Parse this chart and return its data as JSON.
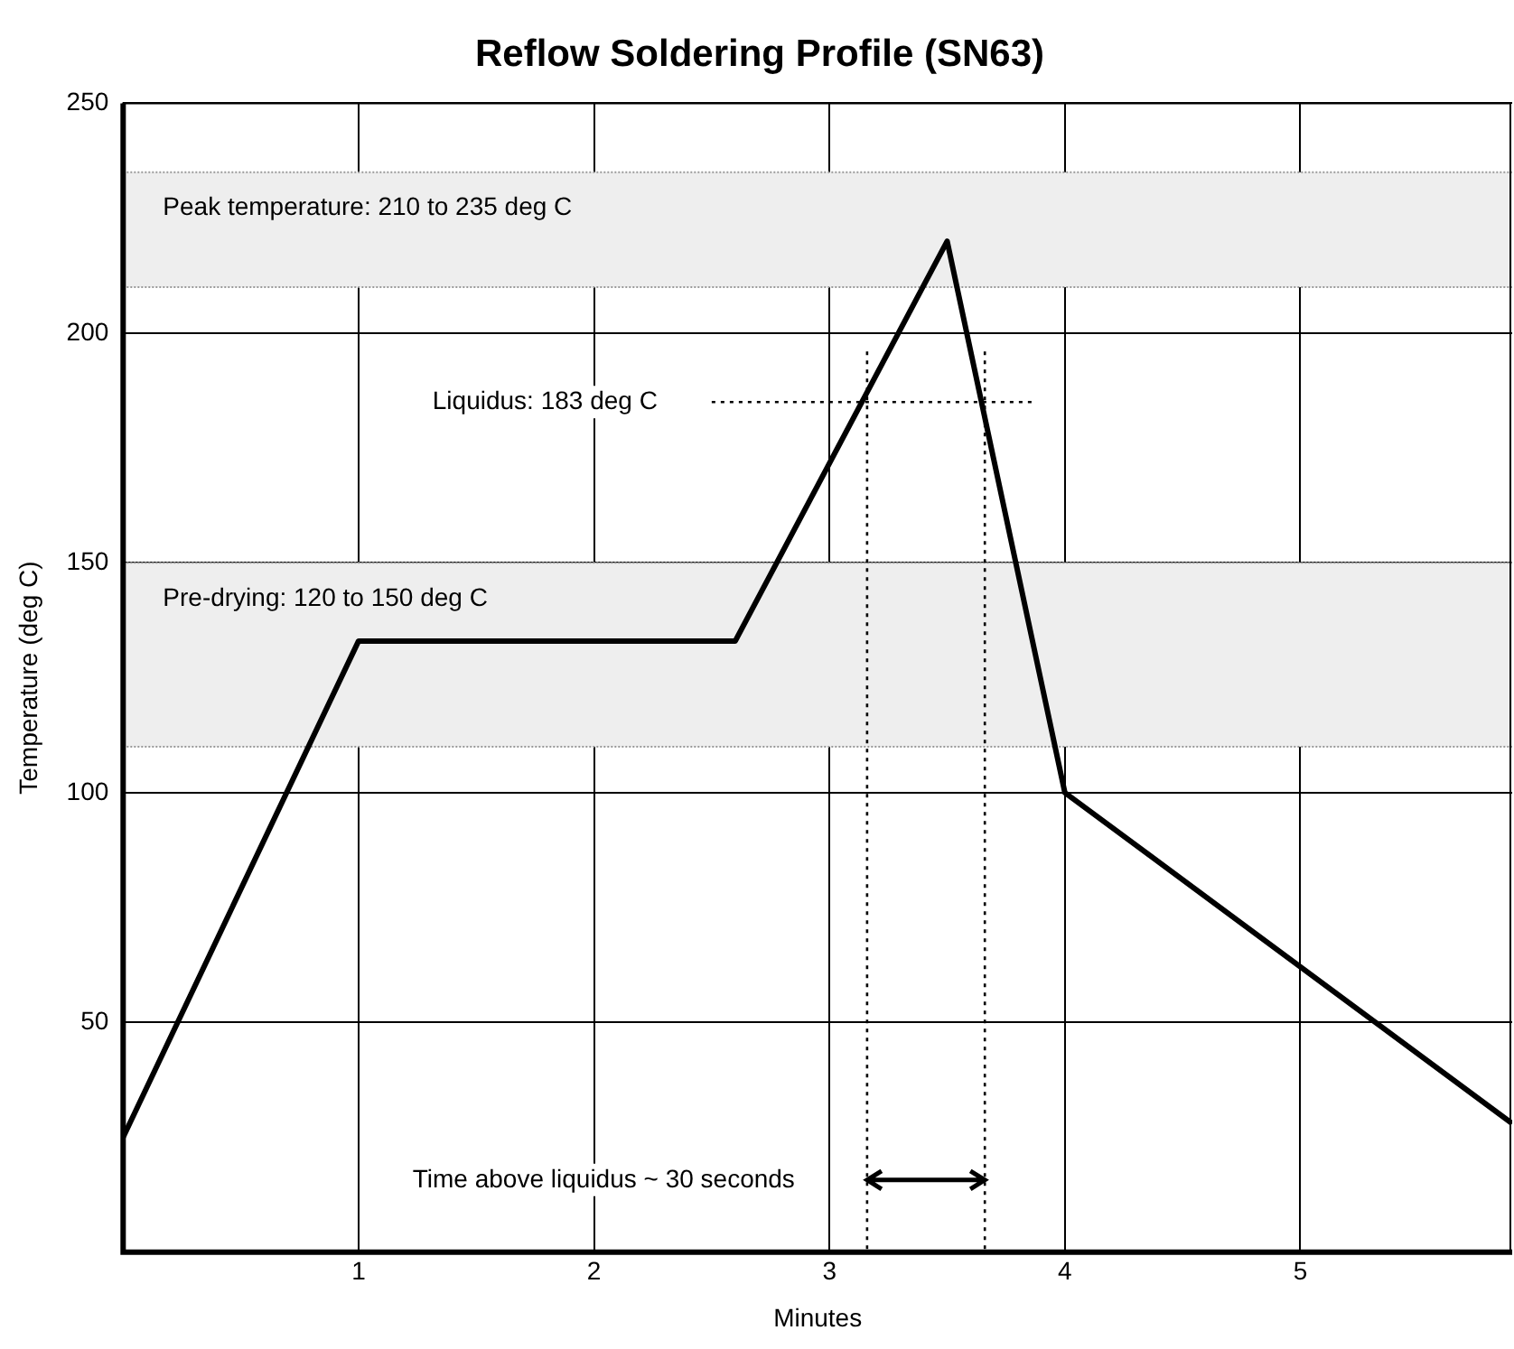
{
  "chart_data": {
    "type": "line",
    "title": "Reflow Soldering Profile (SN63)",
    "xlabel": "Minutes",
    "ylabel": "Temperature (deg C)",
    "xlim": [
      0,
      5.9
    ],
    "xticks": [
      1,
      2,
      3,
      4,
      5
    ],
    "ylim": [
      0,
      250
    ],
    "yticks": [
      50,
      100,
      150,
      200,
      250
    ],
    "grid": true,
    "legend": false,
    "marker": "none",
    "series": [
      {
        "color": "#000000",
        "line_style": "solid",
        "x": [
          0,
          1,
          2.6,
          3.5,
          4,
          5.9
        ],
        "values": [
          25,
          133,
          133,
          220,
          100,
          28
        ]
      },
      {
        "type": "line",
        "color": "#000000",
        "line_style": "dotted",
        "x": [
          2.5,
          3.86
        ],
        "values": [
          185,
          185
        ]
      },
      {
        "type": "line",
        "color": "#000000",
        "line_style": "dotted",
        "x": [
          3.16,
          3.16
        ],
        "values": [
          196,
          0
        ]
      },
      {
        "type": "line",
        "color": "#000000",
        "line_style": "dotted",
        "x": [
          3.66,
          3.66
        ],
        "values": [
          196,
          0
        ]
      }
    ],
    "bands": [
      {
        "axis": "y",
        "from": 210,
        "to": 235,
        "color": "#eeeeee",
        "label": "Peak temperature: 210 to 235 deg C"
      },
      {
        "axis": "y",
        "from": 110,
        "to": 150,
        "color": "#eeeeee",
        "label": "Pre-drying: 120 to 150 deg C"
      }
    ],
    "annotations": [
      "Liquidus: 183 deg C",
      "Time above liquidus ~ 30 seconds"
    ]
  }
}
